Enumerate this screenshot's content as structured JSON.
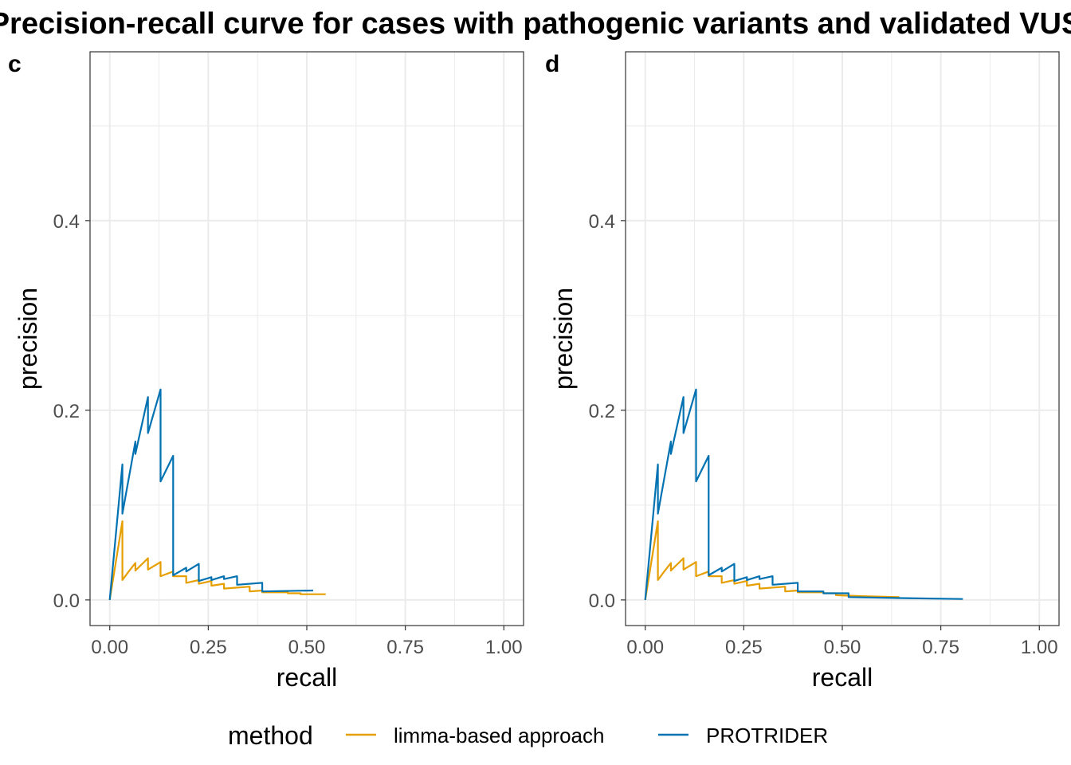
{
  "figure": {
    "title": "Precision-recall curve for cases with pathogenic variants and validated VUS",
    "legend_title": "method"
  },
  "colors": {
    "limma": "#E69F00",
    "protrider": "#0072B2",
    "grid": "#ebebeb",
    "panel_border": "#333333",
    "tick_text": "#4d4d4d"
  },
  "chart_data": [
    {
      "type": "line",
      "tag": "c",
      "xlabel": "recall",
      "ylabel": "precision",
      "xlim": [
        -0.05,
        1.05
      ],
      "ylim": [
        -0.027,
        0.578
      ],
      "x_ticks": [
        0,
        0.25,
        0.5,
        0.75,
        1
      ],
      "x_tick_labels": [
        "0.00",
        "0.25",
        "0.50",
        "0.75",
        "1.00"
      ],
      "y_ticks": [
        0,
        0.2,
        0.4
      ],
      "y_tick_labels": [
        "0.0",
        "0.2",
        "0.4"
      ],
      "grid": true,
      "legend_position": "bottom",
      "series": [
        {
          "name": "limma-based approach",
          "color_key": "limma",
          "points": [
            [
              0,
              0
            ],
            [
              0.032,
              0.083
            ],
            [
              0.032,
              0.021
            ],
            [
              0.048,
              0.03
            ],
            [
              0.065,
              0.039
            ],
            [
              0.065,
              0.031
            ],
            [
              0.097,
              0.044
            ],
            [
              0.097,
              0.032
            ],
            [
              0.129,
              0.04
            ],
            [
              0.129,
              0.025
            ],
            [
              0.161,
              0.03
            ],
            [
              0.161,
              0.025
            ],
            [
              0.194,
              0.025
            ],
            [
              0.194,
              0.018
            ],
            [
              0.226,
              0.021
            ],
            [
              0.226,
              0.017
            ],
            [
              0.258,
              0.02
            ],
            [
              0.258,
              0.015
            ],
            [
              0.29,
              0.017
            ],
            [
              0.29,
              0.012
            ],
            [
              0.355,
              0.014
            ],
            [
              0.355,
              0.009
            ],
            [
              0.387,
              0.01
            ],
            [
              0.387,
              0.008
            ],
            [
              0.452,
              0.008
            ],
            [
              0.452,
              0.007
            ],
            [
              0.484,
              0.007
            ],
            [
              0.484,
              0.006
            ],
            [
              0.548,
              0.006
            ]
          ]
        },
        {
          "name": "PROTRIDER",
          "color_key": "protrider",
          "points": [
            [
              0,
              0
            ],
            [
              0.032,
              0.143
            ],
            [
              0.032,
              0.091
            ],
            [
              0.065,
              0.167
            ],
            [
              0.065,
              0.154
            ],
            [
              0.097,
              0.214
            ],
            [
              0.097,
              0.176
            ],
            [
              0.129,
              0.222
            ],
            [
              0.129,
              0.125
            ],
            [
              0.161,
              0.152
            ],
            [
              0.161,
              0.026
            ],
            [
              0.194,
              0.034
            ],
            [
              0.194,
              0.03
            ],
            [
              0.226,
              0.038
            ],
            [
              0.226,
              0.02
            ],
            [
              0.258,
              0.024
            ],
            [
              0.258,
              0.021
            ],
            [
              0.29,
              0.025
            ],
            [
              0.29,
              0.022
            ],
            [
              0.323,
              0.025
            ],
            [
              0.323,
              0.016
            ],
            [
              0.387,
              0.018
            ],
            [
              0.387,
              0.009
            ],
            [
              0.516,
              0.01
            ]
          ]
        }
      ]
    },
    {
      "type": "line",
      "tag": "d",
      "xlabel": "recall",
      "ylabel": "precision",
      "xlim": [
        -0.05,
        1.05
      ],
      "ylim": [
        -0.027,
        0.578
      ],
      "x_ticks": [
        0,
        0.25,
        0.5,
        0.75,
        1
      ],
      "x_tick_labels": [
        "0.00",
        "0.25",
        "0.50",
        "0.75",
        "1.00"
      ],
      "y_ticks": [
        0,
        0.2,
        0.4
      ],
      "y_tick_labels": [
        "0.0",
        "0.2",
        "0.4"
      ],
      "grid": true,
      "legend_position": "bottom",
      "series": [
        {
          "name": "limma-based approach",
          "color_key": "limma",
          "points": [
            [
              0,
              0
            ],
            [
              0.032,
              0.083
            ],
            [
              0.032,
              0.021
            ],
            [
              0.048,
              0.03
            ],
            [
              0.065,
              0.039
            ],
            [
              0.065,
              0.031
            ],
            [
              0.097,
              0.044
            ],
            [
              0.097,
              0.032
            ],
            [
              0.129,
              0.04
            ],
            [
              0.129,
              0.025
            ],
            [
              0.161,
              0.03
            ],
            [
              0.161,
              0.025
            ],
            [
              0.194,
              0.025
            ],
            [
              0.194,
              0.018
            ],
            [
              0.226,
              0.021
            ],
            [
              0.226,
              0.017
            ],
            [
              0.258,
              0.02
            ],
            [
              0.258,
              0.015
            ],
            [
              0.29,
              0.017
            ],
            [
              0.29,
              0.012
            ],
            [
              0.355,
              0.014
            ],
            [
              0.355,
              0.009
            ],
            [
              0.387,
              0.01
            ],
            [
              0.387,
              0.008
            ],
            [
              0.452,
              0.008
            ],
            [
              0.452,
              0.007
            ],
            [
              0.484,
              0.007
            ],
            [
              0.484,
              0.005
            ],
            [
              0.548,
              0.004
            ],
            [
              0.645,
              0.003
            ]
          ]
        },
        {
          "name": "PROTRIDER",
          "color_key": "protrider",
          "points": [
            [
              0,
              0
            ],
            [
              0.032,
              0.143
            ],
            [
              0.032,
              0.091
            ],
            [
              0.065,
              0.167
            ],
            [
              0.065,
              0.154
            ],
            [
              0.097,
              0.214
            ],
            [
              0.097,
              0.176
            ],
            [
              0.129,
              0.222
            ],
            [
              0.129,
              0.125
            ],
            [
              0.161,
              0.152
            ],
            [
              0.161,
              0.026
            ],
            [
              0.194,
              0.034
            ],
            [
              0.194,
              0.03
            ],
            [
              0.226,
              0.038
            ],
            [
              0.226,
              0.02
            ],
            [
              0.258,
              0.024
            ],
            [
              0.258,
              0.021
            ],
            [
              0.29,
              0.025
            ],
            [
              0.29,
              0.022
            ],
            [
              0.323,
              0.025
            ],
            [
              0.323,
              0.016
            ],
            [
              0.387,
              0.018
            ],
            [
              0.387,
              0.009
            ],
            [
              0.452,
              0.009
            ],
            [
              0.452,
              0.007
            ],
            [
              0.516,
              0.007
            ],
            [
              0.516,
              0.003
            ],
            [
              0.645,
              0.002
            ],
            [
              0.806,
              0.001
            ]
          ]
        }
      ]
    }
  ]
}
